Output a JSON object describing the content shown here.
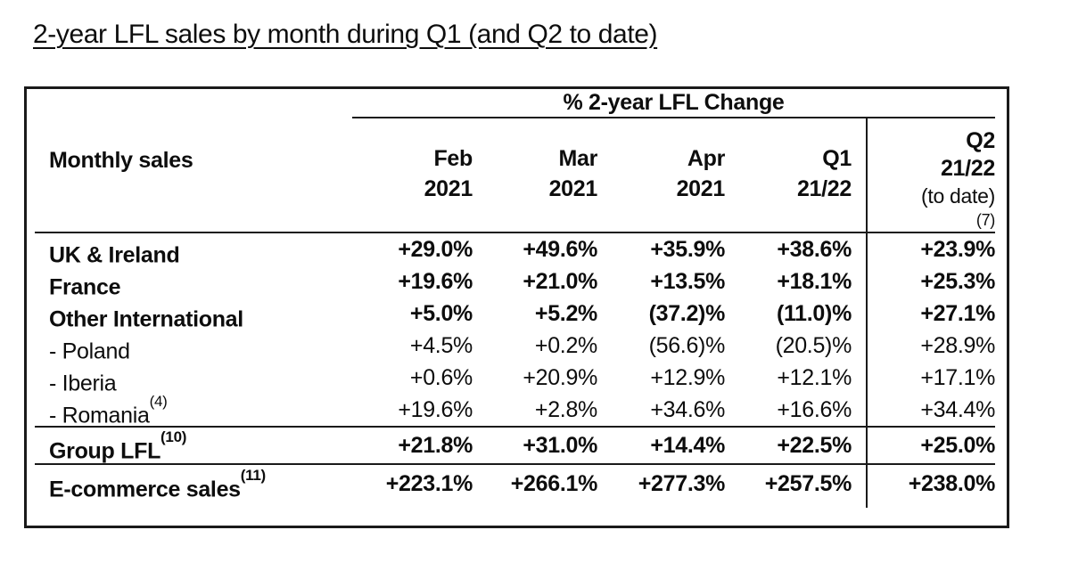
{
  "title": "2-year LFL sales by month during Q1 (and Q2 to date)",
  "table": {
    "group_header": "% 2-year LFL Change",
    "label_header": "Monthly sales",
    "columns": [
      {
        "line1": "Feb",
        "line2": "2021"
      },
      {
        "line1": "Mar",
        "line2": "2021"
      },
      {
        "line1": "Apr",
        "line2": "2021"
      },
      {
        "line1": "Q1",
        "line2": "21/22"
      },
      {
        "line1": "Q2",
        "line2": "21/22",
        "line3": "(to date)",
        "footnote": "(7)"
      }
    ],
    "rows": [
      {
        "label": "UK & Ireland",
        "label_sup": "",
        "values": [
          "+29.0%",
          "+49.6%",
          "+35.9%",
          "+38.6%",
          "+23.9%"
        ]
      },
      {
        "label": "France",
        "label_sup": "",
        "values": [
          "+19.6%",
          "+21.0%",
          "+13.5%",
          "+18.1%",
          "+25.3%"
        ]
      },
      {
        "label": "Other International",
        "label_sup": "",
        "values": [
          "+5.0%",
          "+5.2%",
          "(37.2)%",
          "(11.0)%",
          "+27.1%"
        ]
      },
      {
        "label": "- Poland",
        "label_sup": "",
        "values": [
          "+4.5%",
          "+0.2%",
          "(56.6)%",
          "(20.5)%",
          "+28.9%"
        ]
      },
      {
        "label": "- Iberia",
        "label_sup": "",
        "values": [
          "+0.6%",
          "+20.9%",
          "+12.9%",
          "+12.1%",
          "+17.1%"
        ]
      },
      {
        "label": "- Romania",
        "label_sup": "(4)",
        "values": [
          "+19.6%",
          "+2.8%",
          "+34.6%",
          "+16.6%",
          "+34.4%"
        ]
      }
    ],
    "summary_rows": [
      {
        "label": "Group LFL",
        "label_sup": "(10)",
        "values": [
          "+21.8%",
          "+31.0%",
          "+14.4%",
          "+22.5%",
          "+25.0%"
        ]
      },
      {
        "label": "E-commerce sales",
        "label_sup": "(11)",
        "values": [
          "+223.1%",
          "+266.1%",
          "+277.3%",
          "+257.5%",
          "+238.0%"
        ]
      }
    ]
  },
  "colors": {
    "text": "#0d0d0d",
    "border": "#1a1a1a",
    "background": "#ffffff"
  }
}
